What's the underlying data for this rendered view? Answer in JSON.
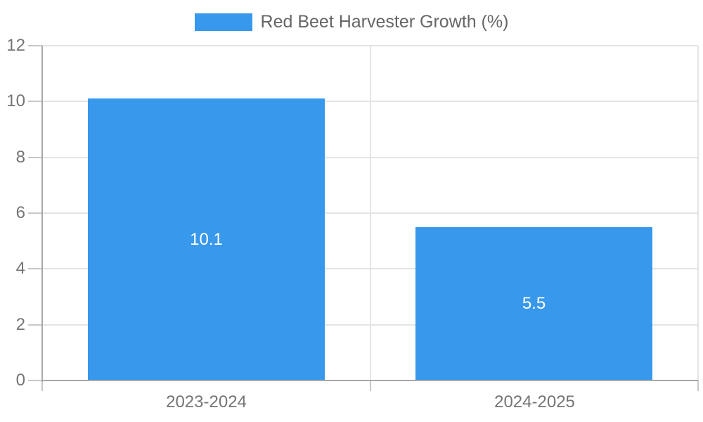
{
  "chart_data": {
    "type": "bar",
    "title": "Red Beet Harvester Growth (%)",
    "legend_entries": [
      "Red Beet Harvester Growth (%)"
    ],
    "legend_position": "top-center",
    "categories": [
      "2023-2024",
      "2024-2025"
    ],
    "series": [
      {
        "name": "Red Beet Harvester Growth (%)",
        "values": [
          10.1,
          5.5
        ]
      }
    ],
    "data_labels": [
      "10.1",
      "5.5"
    ],
    "xlabel": "",
    "ylabel": "",
    "ylim": [
      0,
      12
    ],
    "yticks": [
      0,
      2,
      4,
      6,
      8,
      10,
      12
    ],
    "grid": true,
    "colors": {
      "bar": "#3898ec",
      "grid": "#e4e4e4",
      "axis": "#a8a8a8",
      "tick": "#c8c8c8",
      "axis_text": "#757575",
      "legend_text": "#666666",
      "bar_label_text": "#ffffff",
      "background": "#ffffff"
    }
  }
}
